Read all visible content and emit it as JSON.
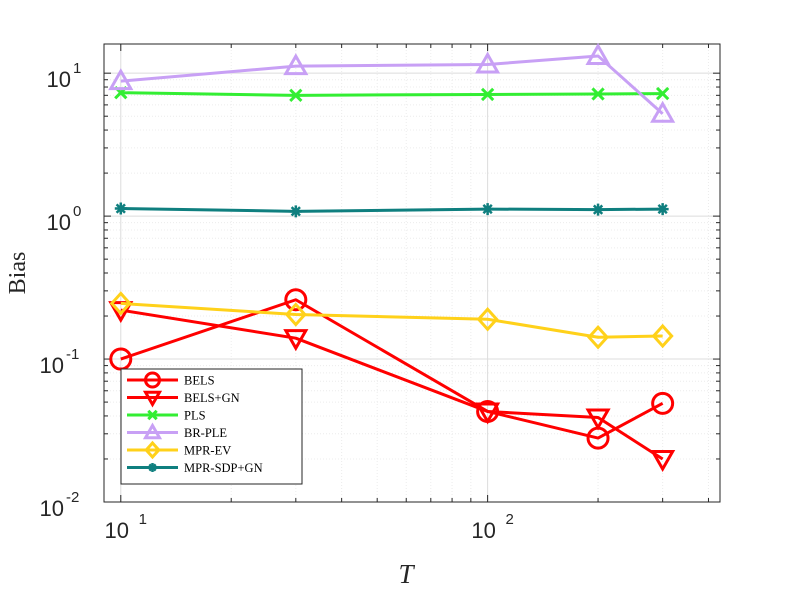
{
  "chart_data": {
    "type": "line",
    "title": "",
    "xlabel": "T",
    "ylabel": "Bias",
    "xscale": "log",
    "yscale": "log",
    "xlim": [
      9,
      430
    ],
    "ylim": [
      0.01,
      16
    ],
    "grid": true,
    "legend_position": "bottom-left",
    "x_ticks": [
      {
        "value": 10,
        "base": "10",
        "exp": "1"
      },
      {
        "value": 100,
        "base": "10",
        "exp": "2"
      }
    ],
    "y_ticks": [
      {
        "value": 0.01,
        "base": "10",
        "exp": "-2"
      },
      {
        "value": 0.1,
        "base": "10",
        "exp": "-1"
      },
      {
        "value": 1,
        "base": "10",
        "exp": "0"
      },
      {
        "value": 10,
        "base": "10",
        "exp": "1"
      }
    ],
    "x": [
      10,
      30,
      100,
      200,
      300
    ],
    "series": [
      {
        "name": "BELS",
        "color": "#ff0000",
        "marker": "circle",
        "values": [
          0.1,
          0.26,
          0.043,
          0.028,
          0.049
        ]
      },
      {
        "name": "BELS+GN",
        "color": "#ff0000",
        "marker": "triangle-down",
        "values": [
          0.22,
          0.14,
          0.043,
          0.039,
          0.02
        ]
      },
      {
        "name": "PLS",
        "color": "#33ee33",
        "marker": "x",
        "values": [
          7.3,
          7.0,
          7.1,
          7.15,
          7.2
        ]
      },
      {
        "name": "BR-PLE",
        "color": "#c8a0f5",
        "marker": "triangle-up",
        "values": [
          8.8,
          11.2,
          11.5,
          13.2,
          5.2
        ]
      },
      {
        "name": "MPR-EV",
        "color": "#ffd11a",
        "marker": "diamond",
        "values": [
          0.245,
          0.205,
          0.19,
          0.142,
          0.145
        ]
      },
      {
        "name": "MPR-SDP+GN",
        "color": "#0f7f7f",
        "marker": "asterisk",
        "values": [
          1.13,
          1.08,
          1.12,
          1.11,
          1.12
        ]
      }
    ]
  }
}
